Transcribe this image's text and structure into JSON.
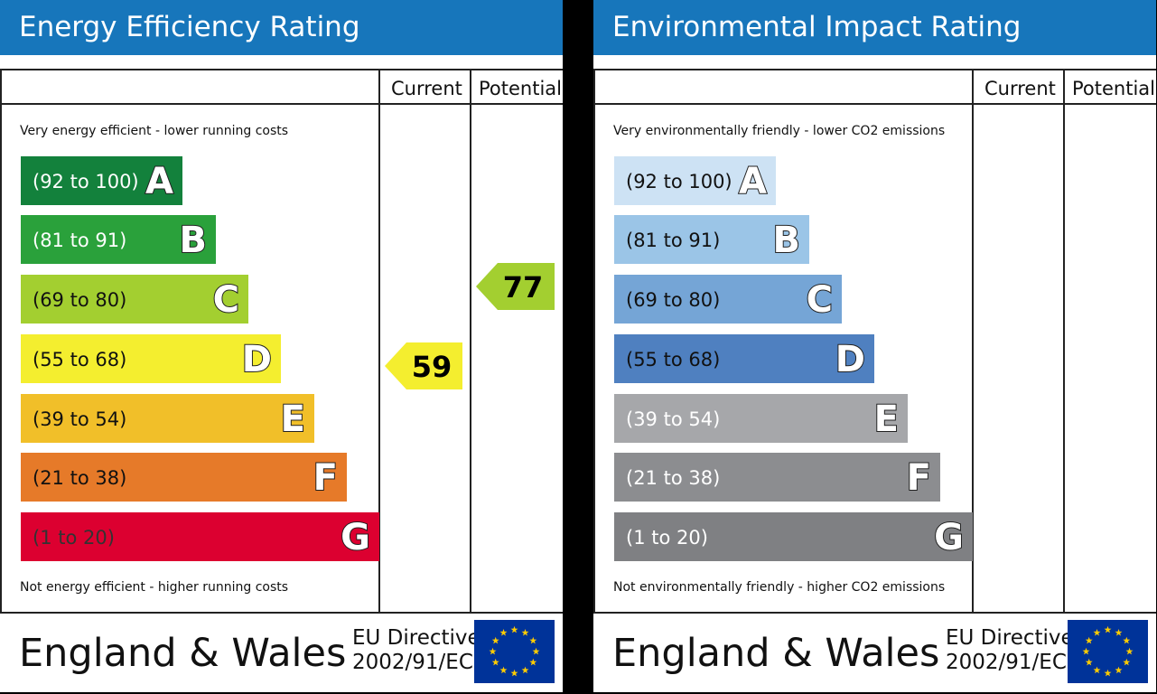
{
  "colors": {
    "header_bg": "#1776bb",
    "eer_bands": [
      "#13813c",
      "#2aa13b",
      "#a3cf30",
      "#f4ee2f",
      "#f1bf29",
      "#e67a29",
      "#dc0030"
    ],
    "eir_bands": [
      "#cde2f4",
      "#9bc5e7",
      "#75a5d6",
      "#4f80c0",
      "#a6a7aa",
      "#8c8d90",
      "#7f8083"
    ],
    "flag_blue": "#003399",
    "flag_star": "#ffcc00"
  },
  "panels": [
    {
      "title": "Energy Efficiency Rating",
      "col_current": "Current",
      "col_potential": "Potential",
      "top_note": "Very energy efficient - lower running costs",
      "bottom_note": "Not energy efficient - higher running costs",
      "bands": [
        {
          "range": "(92 to 100)",
          "letter": "A"
        },
        {
          "range": "(81 to 91)",
          "letter": "B"
        },
        {
          "range": "(69 to 80)",
          "letter": "C"
        },
        {
          "range": "(55 to 68)",
          "letter": "D"
        },
        {
          "range": "(39 to 54)",
          "letter": "E"
        },
        {
          "range": "(21 to 38)",
          "letter": "F"
        },
        {
          "range": "(1 to 20)",
          "letter": "G"
        }
      ],
      "current": {
        "value": "59",
        "band": "D"
      },
      "potential": {
        "value": "77",
        "band": "C"
      },
      "footer_country": "England & Wales",
      "footer_directive_line1": "EU Directive",
      "footer_directive_line2": "2002/91/EC"
    },
    {
      "title": "Environmental Impact Rating",
      "col_current": "Current",
      "col_potential": "Potential",
      "top_note": "Very environmentally friendly - lower CO2 emissions",
      "bottom_note": "Not environmentally friendly - higher CO2 emissions",
      "bands": [
        {
          "range": "(92 to 100)",
          "letter": "A"
        },
        {
          "range": "(81 to 91)",
          "letter": "B"
        },
        {
          "range": "(69 to 80)",
          "letter": "C"
        },
        {
          "range": "(55 to 68)",
          "letter": "D"
        },
        {
          "range": "(39 to 54)",
          "letter": "E"
        },
        {
          "range": "(21 to 38)",
          "letter": "F"
        },
        {
          "range": "(1 to 20)",
          "letter": "G"
        }
      ],
      "footer_country": "England & Wales",
      "footer_directive_line1": "EU Directive",
      "footer_directive_line2": "2002/91/EC"
    }
  ]
}
